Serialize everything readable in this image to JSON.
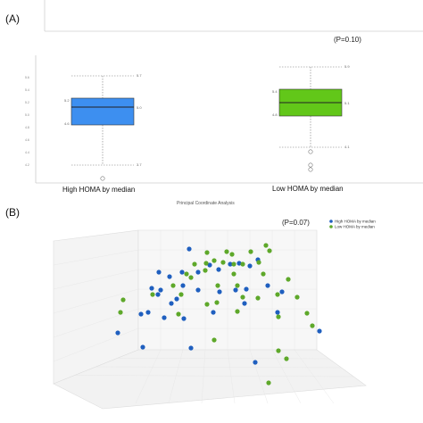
{
  "panel_a": {
    "label": "(A)",
    "p_value": "(P=0.10)",
    "subtitle": "Principal Coordinate Analysis"
  },
  "panel_b": {
    "label": "(B)",
    "p_value": "(P=0.07)"
  },
  "colors": {
    "high_box": "#3d8ff0",
    "low_box": "#62c719",
    "high_point": "#1f5fbf",
    "low_point": "#5ea82a"
  },
  "chart_data": [
    {
      "type": "box",
      "categories": [
        "High HOMA by median",
        "Low HOMA by median"
      ],
      "y_ticks": [
        "4.2",
        "4.4",
        "4.6",
        "4.8",
        "5.0",
        "5.2",
        "5.4",
        "5.6"
      ],
      "boxes": [
        {
          "name": "High HOMA by median",
          "max": 5.7,
          "q3": 5.2,
          "median": 5.0,
          "q1": 4.6,
          "min": 3.7,
          "labels": [
            "5.7",
            "5.2",
            "5.0",
            "4.6",
            "3.7"
          ],
          "outliers": [
            3.4
          ]
        },
        {
          "name": "Low HOMA by median",
          "max": 5.9,
          "q3": 5.4,
          "median": 5.1,
          "q1": 4.8,
          "min": 4.1,
          "labels": [
            "5.9",
            "5.4",
            "5.1",
            "4.8",
            "4.1"
          ],
          "outliers": [
            4.0,
            3.7,
            3.6
          ]
        }
      ]
    },
    {
      "type": "scatter",
      "series": [
        {
          "name": "High HOMA by median",
          "points": [
            [
              212,
              279
            ],
            [
              235,
              297
            ],
            [
              178,
              305
            ],
            [
              190,
              310
            ],
            [
              204,
              305
            ],
            [
              222,
              305
            ],
            [
              245,
              302
            ],
            [
              258,
              296
            ],
            [
              268,
              295
            ],
            [
              280,
              298
            ],
            [
              289,
              291
            ],
            [
              170,
              323
            ],
            [
              180,
              325
            ],
            [
              205,
              320
            ],
            [
              222,
              325
            ],
            [
              246,
              327
            ],
            [
              264,
              325
            ],
            [
              276,
              324
            ],
            [
              300,
              320
            ],
            [
              316,
              327
            ],
            [
              177,
              330
            ],
            [
              198,
              335
            ],
            [
              192,
              340
            ],
            [
              158,
              352
            ],
            [
              166,
              350
            ],
            [
              206,
              357
            ],
            [
              184,
              356
            ],
            [
              239,
              350
            ],
            [
              274,
              340
            ],
            [
              311,
              350
            ],
            [
              358,
              371
            ],
            [
              132,
              373
            ],
            [
              160,
              389
            ],
            [
              214,
              390
            ],
            [
              286,
              406
            ]
          ]
        },
        {
          "name": "Low HOMA by median",
          "points": [
            [
              232,
              283
            ],
            [
              254,
              282
            ],
            [
              260,
              285
            ],
            [
              281,
              282
            ],
            [
              298,
              275
            ],
            [
              218,
              296
            ],
            [
              231,
              295
            ],
            [
              240,
              292
            ],
            [
              250,
              294
            ],
            [
              262,
              296
            ],
            [
              272,
              296
            ],
            [
              290,
              294
            ],
            [
              302,
              281
            ],
            [
              209,
              307
            ],
            [
              230,
              303
            ],
            [
              262,
              307
            ],
            [
              295,
              307
            ],
            [
              323,
              313
            ],
            [
              194,
              320
            ],
            [
              214,
              311
            ],
            [
              266,
              320
            ],
            [
              244,
              320
            ],
            [
              171,
              330
            ],
            [
              203,
              330
            ],
            [
              243,
              339
            ],
            [
              272,
              333
            ],
            [
              289,
              334
            ],
            [
              311,
              330
            ],
            [
              333,
              333
            ],
            [
              138,
              336
            ],
            [
              135,
              350
            ],
            [
              200,
              352
            ],
            [
              232,
              341
            ],
            [
              266,
              349
            ],
            [
              312,
              355
            ],
            [
              344,
              351
            ],
            [
              350,
              365
            ],
            [
              240,
              381
            ],
            [
              312,
              393
            ],
            [
              321,
              402
            ],
            [
              301,
              429
            ]
          ]
        }
      ]
    }
  ]
}
